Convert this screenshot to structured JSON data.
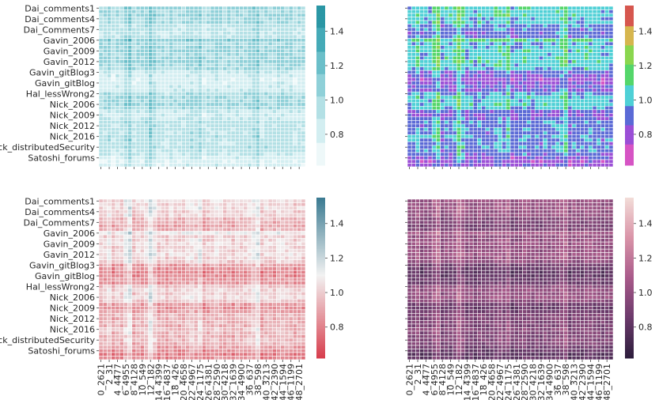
{
  "chart_data": {
    "type": "heatmap",
    "title": "",
    "row_labels": [
      "Dai_comments1",
      "Dai_comments4",
      "Dai_Comments7",
      "Gavin_2006",
      "Gavin_2009",
      "Gavin_2012",
      "Gavin_gitBlog3",
      "Gavin_gitBlog",
      "Hal_lessWrong2",
      "Nick_2006",
      "Nick_2009",
      "Nick_2012",
      "Nick_2016",
      "Nick_distributedSecurity",
      "Satoshi_forums"
    ],
    "row_label_every": 3,
    "col_labels": [
      "0_2621",
      "2_31",
      "4_4477",
      "6_4955",
      "8_4128",
      "10_549",
      "12_182",
      "14_4399",
      "16_4837",
      "18_426",
      "20_4658",
      "22_4967",
      "24_1175",
      "26_4381",
      "28_2590",
      "30_4218",
      "32_1639",
      "34_4900",
      "36_637",
      "38_598",
      "40_3213",
      "42_2390",
      "44_1594",
      "46_1199",
      "48_2701"
    ],
    "col_label_every": 2,
    "n_rows": 45,
    "n_cols": 50,
    "row_level": [
      1.02,
      1.0,
      1.03,
      0.98,
      1.0,
      0.92,
      0.9,
      0.88,
      0.9,
      1.08,
      0.98,
      1.0,
      1.02,
      0.99,
      1.01,
      1.03,
      1.0,
      0.98,
      0.85,
      0.82,
      0.78,
      0.8,
      0.84,
      0.83,
      0.95,
      1.0,
      0.98,
      1.02,
      0.96,
      0.85,
      0.83,
      0.86,
      0.92,
      0.9,
      0.93,
      0.9,
      0.95,
      0.92,
      0.9,
      0.93,
      0.91,
      0.86,
      0.82,
      0.78,
      0.8
    ],
    "col_offset": [
      0,
      0.02,
      0.08,
      -0.02,
      0.03,
      0,
      0.1,
      0.18,
      -0.02,
      0.02,
      0,
      0.05,
      0.2,
      0.1,
      0,
      0.02,
      -0.03,
      0.03,
      0,
      0,
      0.02,
      0.05,
      0.08,
      0.04,
      0.12,
      -0.03,
      0,
      0.02,
      0.06,
      0.03,
      0,
      0.02,
      -0.02,
      0.04,
      0.01,
      0.02,
      0.05,
      0.1,
      0.15,
      -0.02,
      0.03,
      0.02,
      0,
      0.05,
      0.04,
      0.02,
      0.03,
      -0.02,
      0.01,
      0
    ],
    "vmin": 0.62,
    "vmax": 1.55,
    "colorbar_ticks": [
      "0.8",
      "1.0",
      "1.2",
      "1.4"
    ],
    "panels": [
      {
        "name": "top-left",
        "palette": "teal-discrete",
        "colors": [
          "#eef8f9",
          "#d3eef1",
          "#b3e0e5",
          "#8fd0d8",
          "#6bbfc9",
          "#45aab7",
          "#2b97a5"
        ],
        "show_row_labels": true,
        "show_col_labels": false
      },
      {
        "name": "top-right",
        "palette": "hls-discrete",
        "colors": [
          "#d654c4",
          "#9b4fd6",
          "#5b6ad6",
          "#4fd0d6",
          "#55d66a",
          "#8ad64f",
          "#d6b64f",
          "#d6574f"
        ],
        "show_row_labels": false,
        "show_col_labels": false
      },
      {
        "name": "bottom-left",
        "palette": "diverging",
        "colors": [
          "#d73d4c",
          "#f2f2f2",
          "#3a7a91"
        ],
        "center": 1.1,
        "show_row_labels": true,
        "show_col_labels": true
      },
      {
        "name": "bottom-right",
        "palette": "rocket",
        "colors": [
          "#2c1d3c",
          "#6b3a6b",
          "#a85a8a",
          "#d994a8",
          "#f3dcd8"
        ],
        "show_row_labels": false,
        "show_col_labels": true
      }
    ]
  }
}
